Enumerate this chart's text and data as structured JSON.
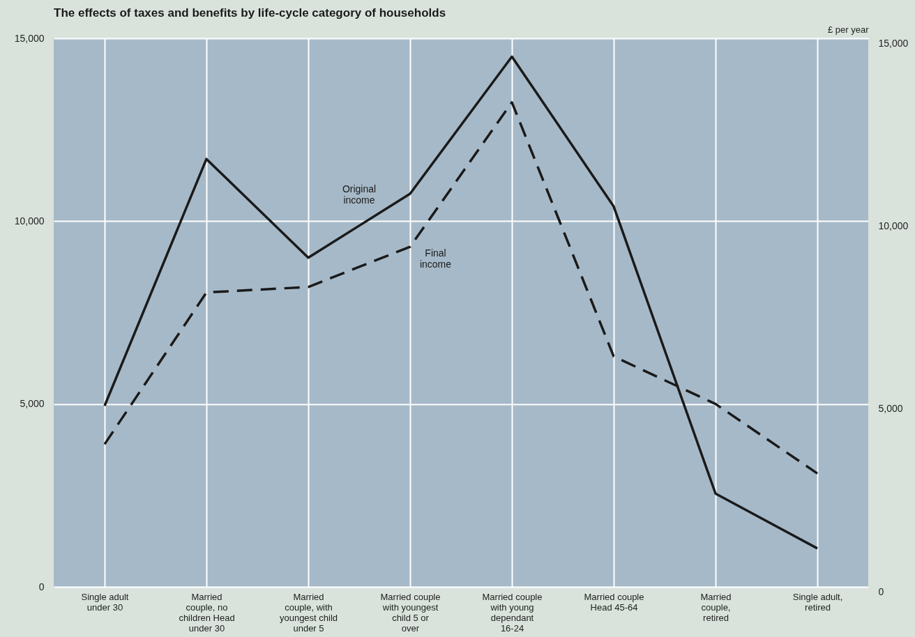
{
  "chart_data": {
    "type": "line",
    "title": "The effects of taxes and benefits by life-cycle category of households",
    "y2label": "£ per year",
    "categories": [
      "Single adult under 30",
      "Married couple, no children Head under 30",
      "Married couple, with youngest child under 5",
      "Married couple with youngest child 5 or over",
      "Married couple with young dependant 16-24",
      "Married couple Head 45-64",
      "Married couple, retired",
      "Single adult, retired"
    ],
    "series": [
      {
        "name": "Original income",
        "color": "#1a1a1a",
        "line_style": "solid",
        "values": [
          4950,
          11700,
          9000,
          10750,
          14500,
          10400,
          2550,
          1050
        ]
      },
      {
        "name": "Final income",
        "color": "#1a1a1a",
        "line_style": "dashed",
        "values": [
          3900,
          8050,
          8200,
          9300,
          13250,
          6300,
          5000,
          3100
        ]
      }
    ],
    "ylim": [
      0,
      15000
    ],
    "yticks": [
      {
        "value": 0,
        "label": "0"
      },
      {
        "value": 5000,
        "label": "5,000"
      },
      {
        "value": 10000,
        "label": "10,000"
      },
      {
        "value": 15000,
        "label": "15,000"
      }
    ],
    "y2lim": [
      0,
      15000
    ],
    "y2ticks": [
      {
        "value": 0,
        "label": "0"
      },
      {
        "value": 5000,
        "label": "5,000"
      },
      {
        "value": 10000,
        "label": "10,000"
      },
      {
        "value": 15000,
        "label": "15,000"
      }
    ],
    "grid": true,
    "marker": "none"
  }
}
